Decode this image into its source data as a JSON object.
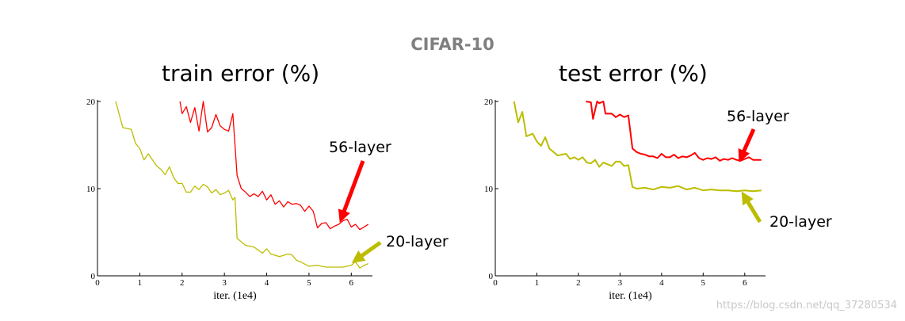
{
  "figure": {
    "suptitle": "CIFAR-10",
    "watermark": "https://blog.csdn.net/qq_37280534"
  },
  "chart_data": [
    {
      "type": "line",
      "title": "train error (%)",
      "xlabel": "iter. (1e4)",
      "ylabel": "",
      "xlim": [
        0,
        6.5
      ],
      "ylim": [
        0,
        20
      ],
      "xticks": [
        "0",
        "1",
        "2",
        "3",
        "4",
        "5",
        "6"
      ],
      "yticks": [
        "0",
        "10",
        "20"
      ],
      "grid": false,
      "series": [
        {
          "name": "56-layer",
          "color": "#ff0000",
          "x": [
            1.95,
            2.0,
            2.1,
            2.2,
            2.3,
            2.4,
            2.5,
            2.6,
            2.7,
            2.8,
            2.9,
            3.0,
            3.1,
            3.2,
            3.3,
            3.4,
            3.5,
            3.6,
            3.7,
            3.8,
            3.9,
            4.0,
            4.1,
            4.2,
            4.3,
            4.4,
            4.5,
            4.6,
            4.7,
            4.8,
            4.9,
            5.0,
            5.1,
            5.2,
            5.3,
            5.4,
            5.5,
            5.6,
            5.7,
            5.8,
            5.9,
            6.0,
            6.1,
            6.2,
            6.3,
            6.4
          ],
          "y": [
            20.0,
            18.6,
            19.4,
            17.6,
            19.3,
            16.6,
            20.0,
            16.5,
            17.0,
            18.5,
            17.2,
            16.8,
            16.6,
            18.6,
            11.5,
            10.0,
            9.6,
            9.1,
            9.4,
            9.1,
            9.7,
            8.7,
            9.3,
            8.2,
            8.6,
            7.9,
            8.5,
            8.2,
            8.3,
            8.1,
            7.4,
            8.0,
            7.4,
            5.5,
            6.0,
            6.1,
            5.4,
            5.7,
            5.9,
            6.3,
            6.5,
            5.6,
            5.9,
            5.3,
            5.6,
            5.9
          ]
        },
        {
          "name": "20-layer",
          "color": "#bcbd00",
          "x": [
            0.43,
            0.6,
            0.8,
            0.9,
            1.0,
            1.1,
            1.2,
            1.4,
            1.5,
            1.6,
            1.7,
            1.8,
            1.9,
            2.0,
            2.1,
            2.2,
            2.3,
            2.4,
            2.5,
            2.6,
            2.7,
            2.8,
            2.9,
            3.0,
            3.1,
            3.2,
            3.25,
            3.3,
            3.5,
            3.7,
            3.9,
            4.0,
            4.1,
            4.3,
            4.5,
            4.6,
            4.7,
            4.8,
            5.0,
            5.2,
            5.4,
            5.6,
            5.8,
            6.0,
            6.1,
            6.2,
            6.3,
            6.4
          ],
          "y": [
            20.0,
            17.0,
            16.8,
            15.2,
            14.6,
            13.3,
            14.0,
            12.6,
            12.2,
            11.6,
            12.5,
            11.3,
            10.6,
            10.6,
            9.6,
            9.6,
            10.3,
            9.9,
            10.5,
            10.2,
            9.5,
            9.9,
            9.3,
            9.5,
            9.8,
            8.7,
            9.0,
            4.3,
            3.5,
            3.3,
            2.6,
            3.1,
            2.5,
            2.2,
            2.5,
            2.4,
            1.8,
            1.6,
            1.1,
            1.2,
            1.0,
            1.0,
            1.0,
            1.2,
            1.6,
            0.9,
            1.2,
            1.4
          ]
        }
      ],
      "annotations": [
        {
          "text": "56-layer",
          "color": "#ff0000"
        },
        {
          "text": "20-layer",
          "color": "#bcbd00"
        }
      ]
    },
    {
      "type": "line",
      "title": "test error (%)",
      "xlabel": "iter. (1e4)",
      "ylabel": "",
      "xlim": [
        0,
        6.5
      ],
      "ylim": [
        0,
        20
      ],
      "xticks": [
        "0",
        "1",
        "2",
        "3",
        "4",
        "5",
        "6"
      ],
      "yticks": [
        "0",
        "10",
        "20"
      ],
      "grid": false,
      "series": [
        {
          "name": "56-layer",
          "color": "#ff0000",
          "x": [
            2.18,
            2.3,
            2.35,
            2.45,
            2.5,
            2.6,
            2.65,
            2.8,
            2.9,
            3.0,
            3.1,
            3.2,
            3.3,
            3.4,
            3.5,
            3.6,
            3.7,
            3.8,
            3.9,
            4.0,
            4.1,
            4.2,
            4.3,
            4.4,
            4.5,
            4.6,
            4.7,
            4.8,
            4.9,
            5.0,
            5.1,
            5.2,
            5.3,
            5.4,
            5.5,
            5.6,
            5.7,
            5.8,
            5.9,
            6.0,
            6.1,
            6.2,
            6.3,
            6.4
          ],
          "y": [
            20.0,
            19.9,
            18.0,
            20.0,
            19.8,
            20.0,
            18.6,
            18.6,
            18.2,
            18.5,
            18.2,
            18.4,
            14.6,
            14.2,
            14.0,
            13.9,
            13.7,
            13.7,
            13.5,
            14.0,
            13.6,
            13.6,
            13.9,
            13.5,
            13.7,
            13.6,
            13.8,
            14.1,
            13.5,
            13.3,
            13.5,
            13.4,
            13.6,
            13.2,
            13.4,
            13.3,
            13.5,
            13.3,
            13.2,
            13.4,
            13.6,
            13.3,
            13.3,
            13.3
          ]
        },
        {
          "name": "20-layer",
          "color": "#bcbd00",
          "x": [
            0.45,
            0.55,
            0.65,
            0.75,
            0.9,
            1.0,
            1.1,
            1.2,
            1.3,
            1.5,
            1.7,
            1.8,
            1.9,
            2.0,
            2.1,
            2.2,
            2.3,
            2.4,
            2.5,
            2.6,
            2.8,
            2.9,
            3.0,
            3.1,
            3.2,
            3.3,
            3.4,
            3.6,
            3.8,
            4.0,
            4.2,
            4.4,
            4.6,
            4.8,
            5.0,
            5.2,
            5.4,
            5.6,
            5.8,
            6.0,
            6.2,
            6.4
          ],
          "y": [
            20.0,
            17.6,
            18.8,
            16.0,
            16.3,
            15.4,
            14.9,
            15.9,
            14.6,
            13.8,
            14.0,
            13.4,
            13.6,
            13.3,
            13.6,
            13.0,
            12.9,
            13.3,
            12.5,
            13.0,
            12.6,
            13.1,
            13.1,
            12.6,
            12.7,
            10.2,
            10.0,
            10.1,
            9.9,
            10.2,
            10.1,
            10.3,
            9.9,
            10.1,
            9.8,
            9.9,
            9.8,
            9.8,
            9.7,
            9.8,
            9.7,
            9.8
          ]
        }
      ],
      "annotations": [
        {
          "text": "56-layer",
          "color": "#ff0000"
        },
        {
          "text": "20-layer",
          "color": "#bcbd00"
        }
      ]
    }
  ]
}
